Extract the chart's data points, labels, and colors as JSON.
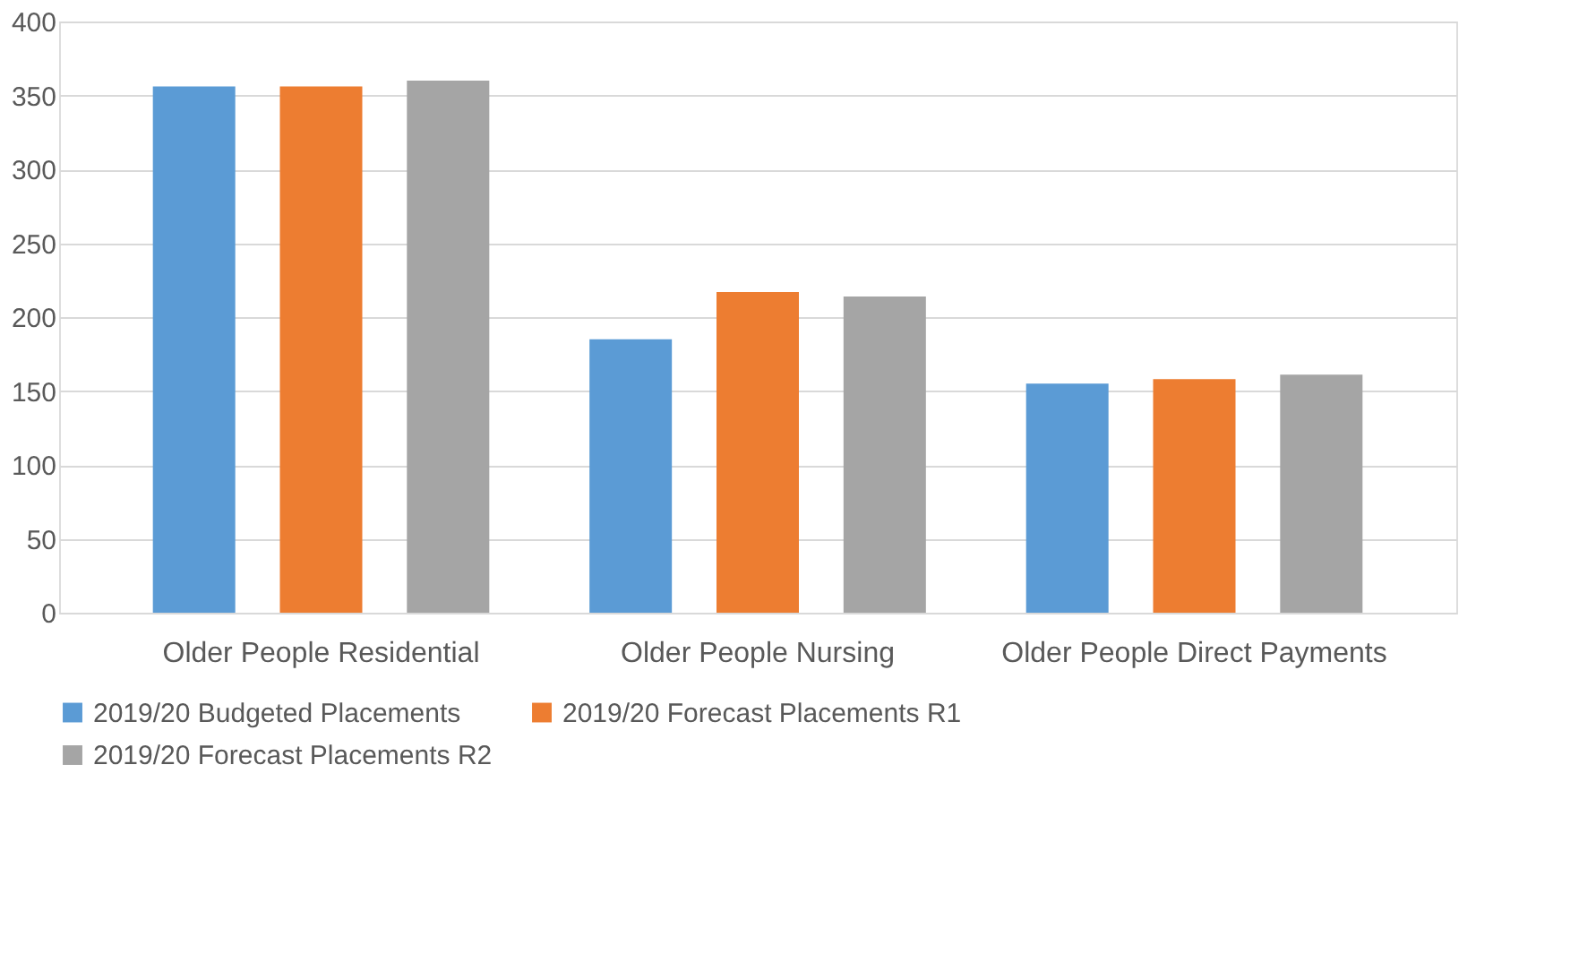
{
  "chart_data": {
    "type": "bar",
    "categories": [
      "Older People Residential",
      "Older People Nursing",
      "Older People Direct Payments"
    ],
    "series": [
      {
        "name": "2019/20 Budgeted Placements",
        "color": "#5b9bd5",
        "values": [
          356,
          185,
          155
        ]
      },
      {
        "name": "2019/20 Forecast Placements R1",
        "color": "#ed7d31",
        "values": [
          356,
          217,
          158
        ]
      },
      {
        "name": "2019/20 Forecast Placements R2",
        "color": "#a5a5a5",
        "values": [
          360,
          214,
          161
        ]
      }
    ],
    "ylim": [
      0,
      400
    ],
    "yticks": [
      0,
      50,
      100,
      150,
      200,
      250,
      300,
      350,
      400
    ],
    "grid": "y",
    "legend": "bottom"
  }
}
